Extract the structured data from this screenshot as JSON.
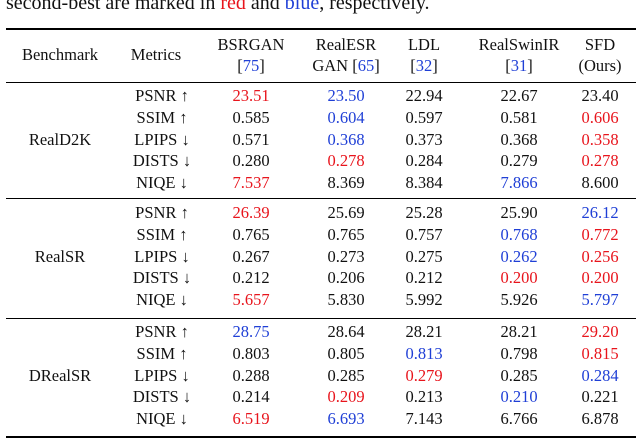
{
  "caption": {
    "prefix": "second-best are marked in ",
    "red_word": "red",
    "middle": " and ",
    "blue_word": "blue",
    "suffix": ", respectively."
  },
  "colors": {
    "best": "#e8141c",
    "second": "#1f3fd6"
  },
  "header": {
    "benchmark": "Benchmark",
    "metrics": "Metrics",
    "methods": [
      {
        "line1": "BSRGAN",
        "cite": "75",
        "pre": "[",
        "post": "]",
        "line2_text": ""
      },
      {
        "line1": "RealESR",
        "line2_text": "GAN ",
        "cite": "65",
        "pre": "[",
        "post": "]"
      },
      {
        "line1": "LDL",
        "cite": "32",
        "pre": "[",
        "post": "]",
        "line2_text": ""
      },
      {
        "line1": "RealSwinIR",
        "cite": "31",
        "pre": "[",
        "post": "]",
        "line2_text": ""
      },
      {
        "line1": "SFD",
        "line2_text": "(Ours)",
        "cite": "",
        "pre": "",
        "post": ""
      }
    ]
  },
  "groups": [
    {
      "benchmark": "RealD2K",
      "rows": [
        {
          "metric": "PSNR ↑",
          "values": [
            "23.51",
            "23.50",
            "22.94",
            "22.67",
            "23.40"
          ],
          "marks": [
            "r",
            "b",
            "",
            "",
            ""
          ]
        },
        {
          "metric": "SSIM ↑",
          "values": [
            "0.585",
            "0.604",
            "0.597",
            "0.581",
            "0.606"
          ],
          "marks": [
            "",
            "b",
            "",
            "",
            "r"
          ]
        },
        {
          "metric": "LPIPS ↓",
          "values": [
            "0.571",
            "0.368",
            "0.373",
            "0.368",
            "0.358"
          ],
          "marks": [
            "",
            "b",
            "",
            "",
            "r"
          ]
        },
        {
          "metric": "DISTS ↓",
          "values": [
            "0.280",
            "0.278",
            "0.284",
            "0.279",
            "0.278"
          ],
          "marks": [
            "",
            "r",
            "",
            "",
            "r"
          ]
        },
        {
          "metric": "NIQE ↓",
          "values": [
            "7.537",
            "8.369",
            "8.384",
            "7.866",
            "8.600"
          ],
          "marks": [
            "r",
            "",
            "",
            "b",
            ""
          ]
        }
      ]
    },
    {
      "benchmark": "RealSR",
      "rows": [
        {
          "metric": "PSNR ↑",
          "values": [
            "26.39",
            "25.69",
            "25.28",
            "25.90",
            "26.12"
          ],
          "marks": [
            "r",
            "",
            "",
            "",
            "b"
          ]
        },
        {
          "metric": "SSIM ↑",
          "values": [
            "0.765",
            "0.765",
            "0.757",
            "0.768",
            "0.772"
          ],
          "marks": [
            "",
            "",
            "",
            "b",
            "r"
          ]
        },
        {
          "metric": "LPIPS ↓",
          "values": [
            "0.267",
            "0.273",
            "0.275",
            "0.262",
            "0.256"
          ],
          "marks": [
            "",
            "",
            "",
            "b",
            "r"
          ]
        },
        {
          "metric": "DISTS ↓",
          "values": [
            "0.212",
            "0.206",
            "0.212",
            "0.200",
            "0.200"
          ],
          "marks": [
            "",
            "",
            "",
            "r",
            "r"
          ]
        },
        {
          "metric": "NIQE ↓",
          "values": [
            "5.657",
            "5.830",
            "5.992",
            "5.926",
            "5.797"
          ],
          "marks": [
            "r",
            "",
            "",
            "",
            "b"
          ]
        }
      ]
    },
    {
      "benchmark": "DRealSR",
      "rows": [
        {
          "metric": "PSNR ↑",
          "values": [
            "28.75",
            "28.64",
            "28.21",
            "28.21",
            "29.20"
          ],
          "marks": [
            "b",
            "",
            "",
            "",
            "r"
          ]
        },
        {
          "metric": "SSIM ↑",
          "values": [
            "0.803",
            "0.805",
            "0.813",
            "0.798",
            "0.815"
          ],
          "marks": [
            "",
            "",
            "b",
            "",
            "r"
          ]
        },
        {
          "metric": "LPIPS ↓",
          "values": [
            "0.288",
            "0.285",
            "0.279",
            "0.285",
            "0.284"
          ],
          "marks": [
            "",
            "",
            "r",
            "",
            "b"
          ]
        },
        {
          "metric": "DISTS ↓",
          "values": [
            "0.214",
            "0.209",
            "0.213",
            "0.210",
            "0.221"
          ],
          "marks": [
            "",
            "r",
            "",
            "b",
            ""
          ]
        },
        {
          "metric": "NIQE ↓",
          "values": [
            "6.519",
            "6.693",
            "7.143",
            "6.766",
            "6.878"
          ],
          "marks": [
            "r",
            "b",
            "",
            "",
            ""
          ]
        }
      ]
    }
  ]
}
